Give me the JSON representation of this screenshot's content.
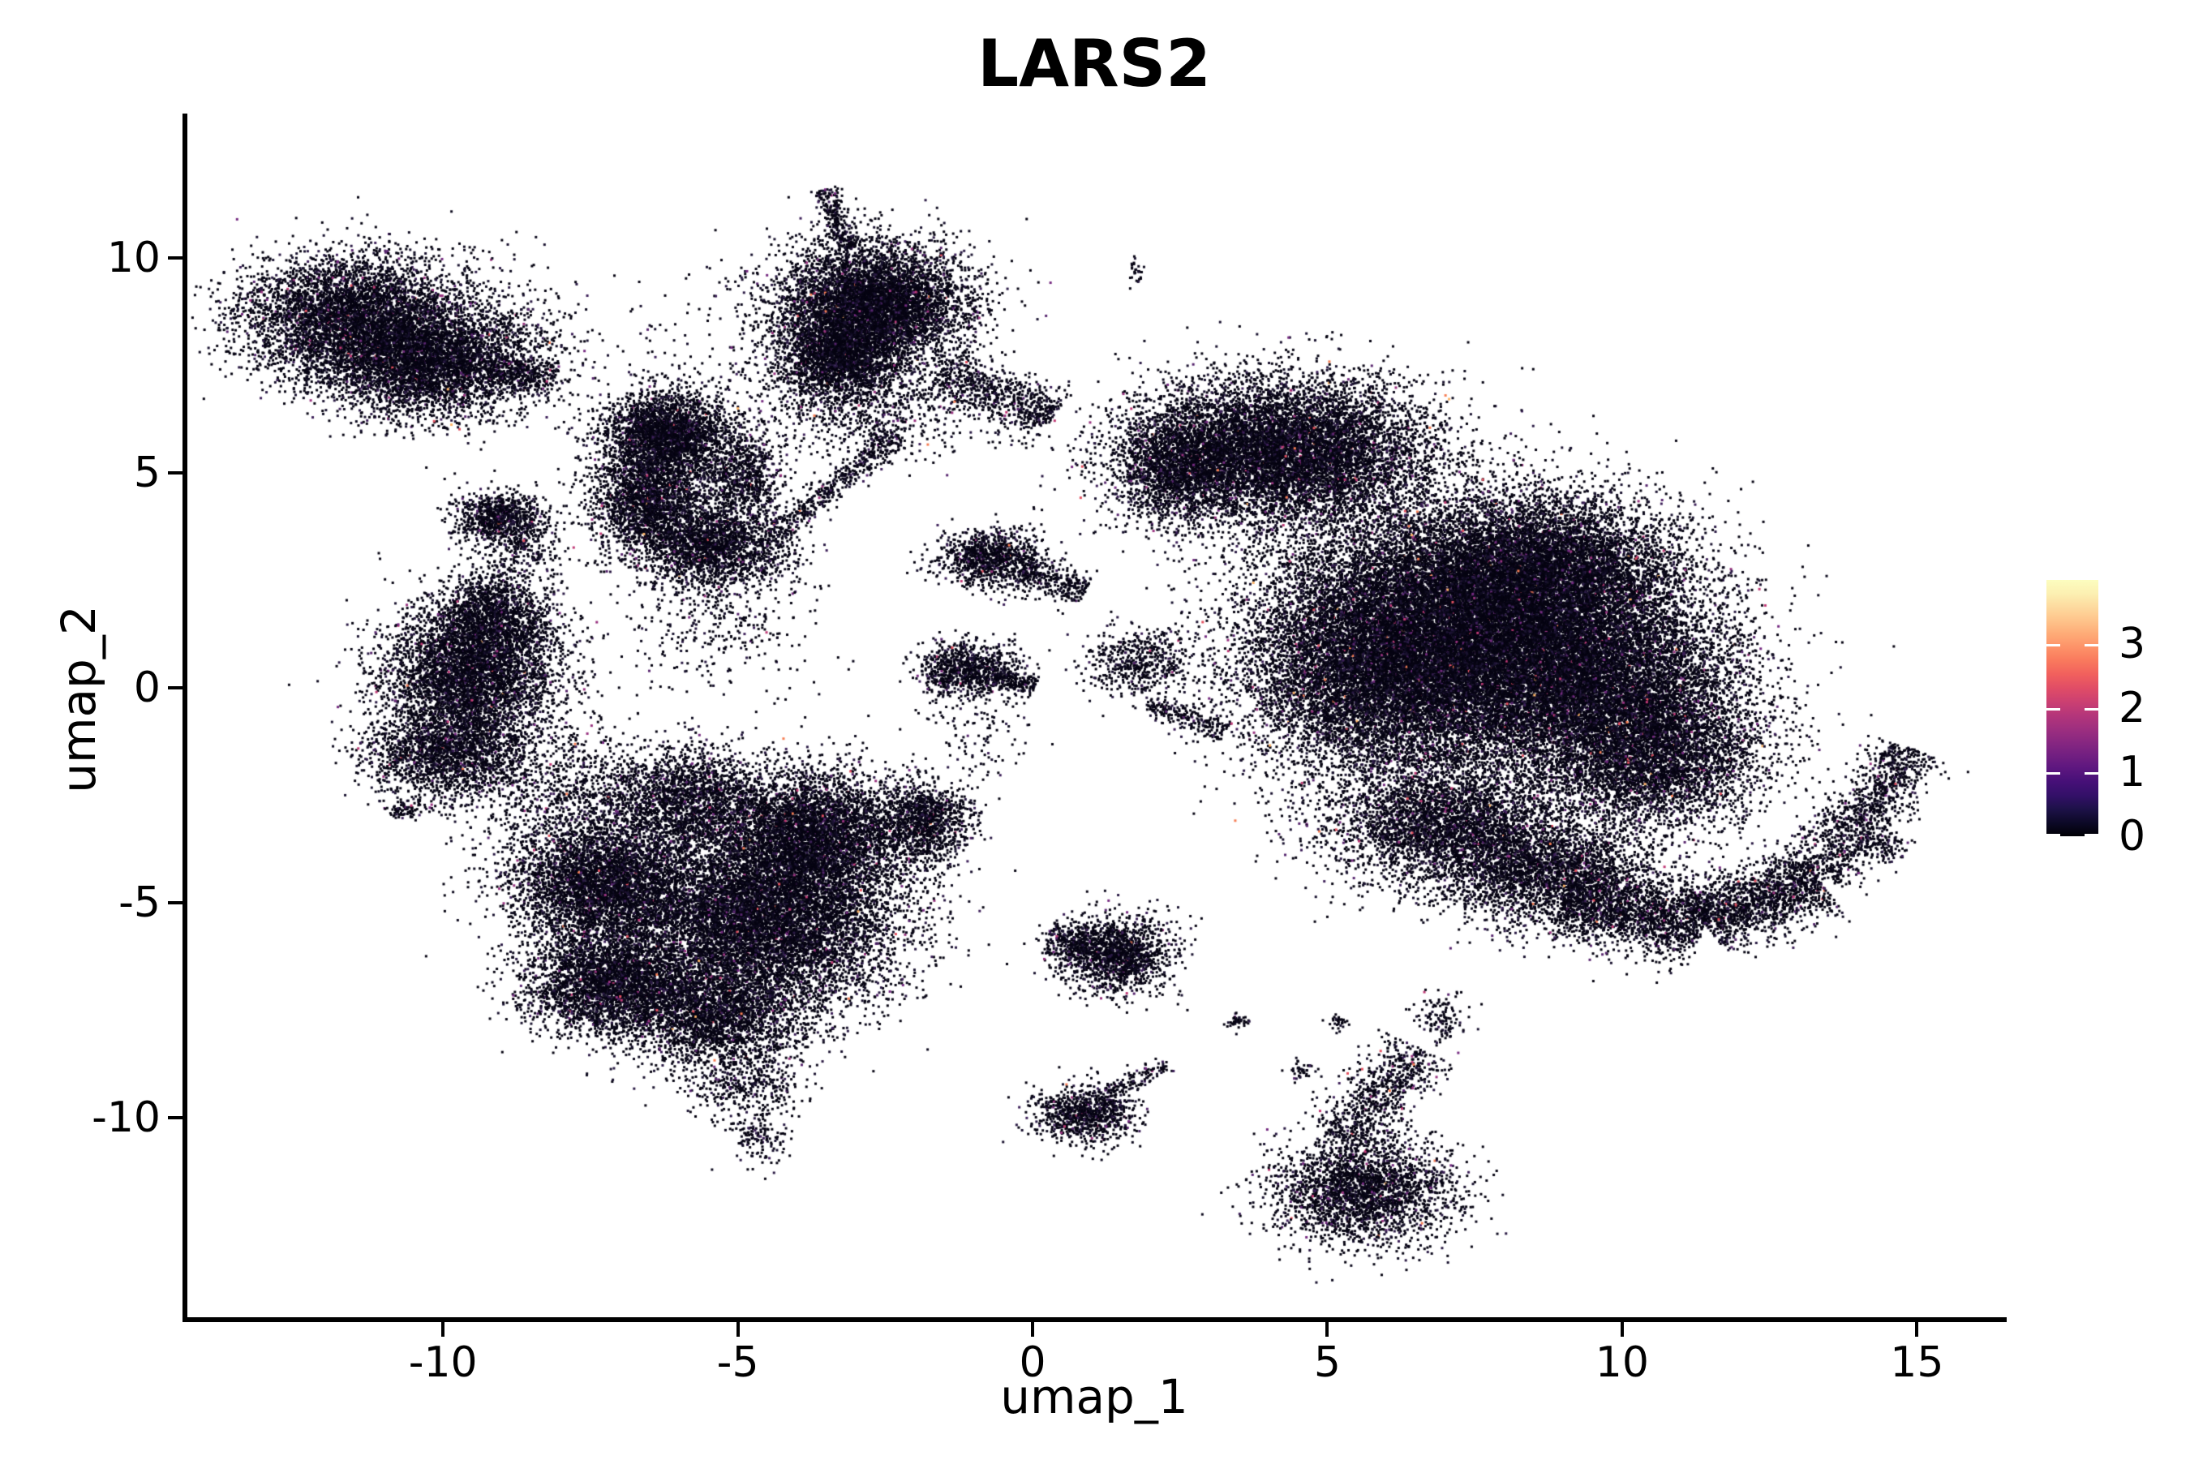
{
  "title": "LARS2",
  "axes": {
    "xlabel": "umap_1",
    "ylabel": "umap_2",
    "x_ticks": [
      -10,
      -5,
      0,
      5,
      10,
      15
    ],
    "y_ticks": [
      10,
      5,
      0,
      -5,
      -10
    ],
    "xlim": [
      -14.35,
      16.44
    ],
    "ylim": [
      -14.64,
      13.36
    ]
  },
  "colorbar": {
    "vmin": 0,
    "vmax": 4,
    "tick_values": [
      3,
      2,
      1,
      0
    ],
    "tick_labels": [
      "3",
      "2",
      "1",
      "0"
    ],
    "gradient_bottom_to_top": [
      "#000004",
      "#0c0927",
      "#1d1147",
      "#331068",
      "#451077",
      "#5c167f",
      "#721f81",
      "#882781",
      "#9f2f7f",
      "#b5367a",
      "#cc4071",
      "#e14d66",
      "#f1605d",
      "#f9795d",
      "#fd9268",
      "#feab77",
      "#fec48b",
      "#fdda9f",
      "#fcf0b2",
      "#fcfdbf"
    ]
  },
  "style": {
    "background": "#ffffff",
    "axis_color": "#000000",
    "text_color": "#000000"
  },
  "chart_data": {
    "type": "scatter",
    "title": "LARS2",
    "xlabel": "umap_1",
    "ylabel": "umap_2",
    "legend_position": "right",
    "grid": false,
    "seed": 42,
    "point_size": 3,
    "value_palette": [
      {
        "value": 0.0,
        "color": "#060412",
        "weight": 680
      },
      {
        "value": 0.1,
        "color": "#0d0a1e",
        "weight": 140
      },
      {
        "value": 0.3,
        "color": "#19122f",
        "weight": 90
      },
      {
        "value": 0.6,
        "color": "#2a1a44",
        "weight": 45
      },
      {
        "value": 0.9,
        "color": "#3d2059",
        "weight": 20
      },
      {
        "value": 1.3,
        "color": "#57256e",
        "weight": 10
      },
      {
        "value": 1.7,
        "color": "#752a80",
        "weight": 6
      },
      {
        "value": 2.1,
        "color": "#993380",
        "weight": 4
      },
      {
        "value": 2.5,
        "color": "#c03a76",
        "weight": 2.5
      },
      {
        "value": 2.9,
        "color": "#e35261",
        "weight": 1.5
      },
      {
        "value": 3.3,
        "color": "#f67e54",
        "weight": 0.8
      },
      {
        "value": 3.7,
        "color": "#fdb467",
        "weight": 0.4
      }
    ],
    "clusters": [
      {
        "name": "topleft-core",
        "kind": "blob",
        "x": -11.5,
        "y": 8.6,
        "sx": 0.95,
        "sy": 0.72,
        "n": 5200
      },
      {
        "name": "topleft-lower",
        "kind": "blob",
        "x": -10.3,
        "y": 7.5,
        "sx": 0.85,
        "sy": 0.62,
        "n": 3600
      },
      {
        "name": "topleft-fringe",
        "kind": "blob",
        "x": -9.4,
        "y": 7.9,
        "sx": 0.85,
        "sy": 0.85,
        "n": 800
      },
      {
        "name": "topleft-arm",
        "kind": "streak",
        "x1": -9.2,
        "y1": 7.4,
        "x2": -8.1,
        "y2": 7.2,
        "w": 0.22,
        "n": 350
      },
      {
        "name": "topcenter-core",
        "kind": "blob",
        "x": -2.7,
        "y": 8.9,
        "sx": 0.8,
        "sy": 0.72,
        "n": 6200
      },
      {
        "name": "topcenter-left",
        "kind": "blob",
        "x": -3.3,
        "y": 7.7,
        "sx": 0.55,
        "sy": 0.55,
        "n": 2400
      },
      {
        "name": "topcenter-spike",
        "kind": "streak",
        "x1": -3.1,
        "y1": 10.2,
        "x2": -3.55,
        "y2": 11.6,
        "w": 0.12,
        "n": 260
      },
      {
        "name": "topcenter-tail",
        "kind": "streak",
        "x1": -1.6,
        "y1": 7.3,
        "x2": 0.35,
        "y2": 6.3,
        "w": 0.3,
        "n": 750
      },
      {
        "name": "topcenter-below",
        "kind": "blob",
        "x": -2.7,
        "y": 6.4,
        "sx": 1.0,
        "sy": 0.55,
        "n": 600
      },
      {
        "name": "top-sparse",
        "kind": "blob",
        "x": -5.6,
        "y": 7.6,
        "sx": 1.1,
        "sy": 1.1,
        "n": 160
      },
      {
        "name": "small-left-blob",
        "kind": "blob",
        "x": -9.05,
        "y": 3.95,
        "sx": 0.4,
        "sy": 0.3,
        "n": 950
      },
      {
        "name": "small-left-trail",
        "kind": "blob",
        "x": -8.6,
        "y": 3.1,
        "sx": 0.35,
        "sy": 0.4,
        "n": 220
      },
      {
        "name": "left-vert-sparse",
        "kind": "streak",
        "x1": -8.6,
        "y1": 2.4,
        "x2": -8.5,
        "y2": 0.9,
        "w": 0.3,
        "n": 140
      },
      {
        "name": "leftmid-core",
        "kind": "blob",
        "x": -9.5,
        "y": 0.4,
        "sx": 0.72,
        "sy": 0.78,
        "n": 4600
      },
      {
        "name": "leftmid-top",
        "kind": "blob",
        "x": -9.2,
        "y": 1.75,
        "sx": 0.42,
        "sy": 0.5,
        "n": 1100
      },
      {
        "name": "leftmid-bottom",
        "kind": "blob",
        "x": -9.9,
        "y": -1.5,
        "sx": 0.72,
        "sy": 0.58,
        "n": 2300
      },
      {
        "name": "leftmid-speck",
        "kind": "blob",
        "x": -10.65,
        "y": -2.85,
        "sx": 0.12,
        "sy": 0.1,
        "n": 70
      },
      {
        "name": "center-hook-top",
        "kind": "blob",
        "x": -6.2,
        "y": 5.9,
        "sx": 0.55,
        "sy": 0.5,
        "n": 2700
      },
      {
        "name": "center-hook-left",
        "kind": "blob",
        "x": -6.5,
        "y": 4.4,
        "sx": 0.5,
        "sy": 0.65,
        "n": 2300
      },
      {
        "name": "center-hook-bottom",
        "kind": "blob",
        "x": -5.4,
        "y": 3.3,
        "sx": 0.6,
        "sy": 0.5,
        "n": 2100
      },
      {
        "name": "center-hook-right",
        "kind": "blob",
        "x": -4.9,
        "y": 4.9,
        "sx": 0.32,
        "sy": 0.55,
        "n": 800
      },
      {
        "name": "center-bridge",
        "kind": "streak",
        "x1": -4.5,
        "y1": 3.4,
        "x2": -2.3,
        "y2": 5.9,
        "w": 0.16,
        "n": 520
      },
      {
        "name": "center-below-sparse",
        "kind": "blob",
        "x": -5.4,
        "y": 1.7,
        "sx": 0.8,
        "sy": 0.9,
        "n": 420
      },
      {
        "name": "bottomleft-lobe1",
        "kind": "blob",
        "x": -7.3,
        "y": -4.6,
        "sx": 0.78,
        "sy": 0.78,
        "n": 4600
      },
      {
        "name": "bottomleft-lobe2",
        "kind": "blob",
        "x": -7.2,
        "y": -6.9,
        "sx": 0.68,
        "sy": 0.58,
        "n": 3100
      },
      {
        "name": "bottomcenter-main",
        "kind": "blob",
        "x": -4.6,
        "y": -5.4,
        "sx": 1.15,
        "sy": 1.05,
        "n": 9500
      },
      {
        "name": "bottomcenter-top",
        "kind": "blob",
        "x": -3.7,
        "y": -3.4,
        "sx": 0.8,
        "sy": 0.75,
        "n": 4600
      },
      {
        "name": "bottomcenter-low",
        "kind": "blob",
        "x": -5.4,
        "y": -7.6,
        "sx": 0.8,
        "sy": 0.6,
        "n": 2600
      },
      {
        "name": "bottomleft-top",
        "kind": "blob",
        "x": -5.9,
        "y": -2.6,
        "sx": 0.7,
        "sy": 0.6,
        "n": 2100
      },
      {
        "name": "bottomleft-sparse",
        "kind": "blob",
        "x": -7.9,
        "y": -2.3,
        "sx": 0.8,
        "sy": 0.75,
        "n": 700
      },
      {
        "name": "bottom-tail1",
        "kind": "blob",
        "x": -4.9,
        "y": -9.2,
        "sx": 0.5,
        "sy": 0.4,
        "n": 420
      },
      {
        "name": "bottom-tail2",
        "kind": "blob",
        "x": -4.6,
        "y": -10.4,
        "sx": 0.25,
        "sy": 0.35,
        "n": 150
      },
      {
        "name": "small-mid-bottom",
        "kind": "blob",
        "x": -1.8,
        "y": -3.1,
        "sx": 0.38,
        "sy": 0.45,
        "n": 1100
      },
      {
        "name": "central-blob1",
        "kind": "blob",
        "x": -0.7,
        "y": 3.0,
        "sx": 0.45,
        "sy": 0.33,
        "n": 1050
      },
      {
        "name": "central-blob1-trail",
        "kind": "streak",
        "x1": -0.2,
        "y1": 2.7,
        "x2": 0.9,
        "y2": 2.25,
        "w": 0.22,
        "n": 300
      },
      {
        "name": "central-blob2",
        "kind": "blob",
        "x": -1.1,
        "y": 0.4,
        "sx": 0.42,
        "sy": 0.33,
        "n": 950
      },
      {
        "name": "central-blob2-tip",
        "kind": "streak",
        "x1": -0.65,
        "y1": 0.3,
        "x2": 0.05,
        "y2": 0.05,
        "w": 0.13,
        "n": 180
      },
      {
        "name": "central-streak",
        "kind": "streak",
        "x1": 1.95,
        "y1": -0.35,
        "x2": 3.25,
        "y2": -1.05,
        "w": 0.16,
        "n": 230
      },
      {
        "name": "central-sparse",
        "kind": "blob",
        "x": -0.9,
        "y": -1.2,
        "sx": 0.5,
        "sy": 0.55,
        "n": 110
      },
      {
        "name": "right-hump",
        "kind": "blob",
        "x": 4.2,
        "y": 5.5,
        "sx": 1.25,
        "sy": 0.85,
        "n": 9500
      },
      {
        "name": "right-hump-tip",
        "kind": "blob",
        "x": 2.4,
        "y": 5.1,
        "sx": 0.5,
        "sy": 0.6,
        "n": 1500
      },
      {
        "name": "right-core1",
        "kind": "blob",
        "x": 7.4,
        "y": 1.2,
        "sx": 1.55,
        "sy": 1.5,
        "n": 16500
      },
      {
        "name": "right-core2",
        "kind": "blob",
        "x": 9.5,
        "y": 0.2,
        "sx": 1.25,
        "sy": 1.3,
        "n": 9500
      },
      {
        "name": "right-left-part",
        "kind": "blob",
        "x": 5.8,
        "y": 0.6,
        "sx": 1.15,
        "sy": 1.35,
        "n": 8000
      },
      {
        "name": "right-top",
        "kind": "blob",
        "x": 8.6,
        "y": 2.8,
        "sx": 1.15,
        "sy": 0.8,
        "n": 6000
      },
      {
        "name": "right-east",
        "kind": "blob",
        "x": 10.6,
        "y": -1.5,
        "sx": 0.9,
        "sy": 0.95,
        "n": 4200
      },
      {
        "name": "right-bottom1",
        "kind": "blob",
        "x": 7.0,
        "y": -3.2,
        "sx": 1.0,
        "sy": 0.7,
        "n": 3600
      },
      {
        "name": "right-bottom2",
        "kind": "blob",
        "x": 8.7,
        "y": -4.3,
        "sx": 0.85,
        "sy": 0.6,
        "n": 2600
      },
      {
        "name": "right-tail1",
        "kind": "streak",
        "x1": 9.0,
        "y1": -4.9,
        "x2": 11.4,
        "y2": -5.5,
        "w": 0.45,
        "n": 1900
      },
      {
        "name": "right-tail2",
        "kind": "streak",
        "x1": 11.4,
        "y1": -5.5,
        "x2": 13.3,
        "y2": -4.4,
        "w": 0.4,
        "n": 1500
      },
      {
        "name": "right-tail3",
        "kind": "streak",
        "x1": 13.3,
        "y1": -4.4,
        "x2": 14.9,
        "y2": -1.4,
        "w": 0.32,
        "n": 1200
      },
      {
        "name": "tail-satellite",
        "kind": "blob",
        "x": 14.4,
        "y": -3.7,
        "sx": 0.22,
        "sy": 0.18,
        "n": 110
      },
      {
        "name": "right-arm",
        "kind": "blob",
        "x": 1.8,
        "y": 0.6,
        "sx": 0.45,
        "sy": 0.4,
        "n": 550
      },
      {
        "name": "top-speck",
        "kind": "blob",
        "x": 1.75,
        "y": 9.7,
        "sx": 0.06,
        "sy": 0.14,
        "n": 30
      },
      {
        "name": "bottom-small1",
        "kind": "blob",
        "x": 1.4,
        "y": -6.2,
        "sx": 0.5,
        "sy": 0.42,
        "n": 1700
      },
      {
        "name": "bottom-small1-tail",
        "kind": "streak",
        "x1": 0.25,
        "y1": -5.8,
        "x2": 1.0,
        "y2": -6.0,
        "w": 0.18,
        "n": 160
      },
      {
        "name": "bottom-small2",
        "kind": "blob",
        "x": 0.9,
        "y": -9.9,
        "sx": 0.42,
        "sy": 0.33,
        "n": 950
      },
      {
        "name": "bottom-small2-tail",
        "kind": "streak",
        "x1": 1.3,
        "y1": -9.4,
        "x2": 2.3,
        "y2": -8.75,
        "w": 0.1,
        "n": 110
      },
      {
        "name": "cone-blob",
        "kind": "blob",
        "x": 5.6,
        "y": -11.7,
        "sx": 0.75,
        "sy": 0.62,
        "n": 2700
      },
      {
        "name": "cone-neck",
        "kind": "streak",
        "x1": 5.2,
        "y1": -10.5,
        "x2": 6.6,
        "y2": -8.4,
        "w": 0.34,
        "n": 750
      },
      {
        "name": "cone-tip",
        "kind": "blob",
        "x": 6.9,
        "y": -7.7,
        "sx": 0.2,
        "sy": 0.25,
        "n": 130
      },
      {
        "name": "speck-a",
        "kind": "blob",
        "x": 3.5,
        "y": -7.75,
        "sx": 0.12,
        "sy": 0.1,
        "n": 40
      },
      {
        "name": "speck-b",
        "kind": "blob",
        "x": 5.2,
        "y": -7.8,
        "sx": 0.1,
        "sy": 0.08,
        "n": 30
      },
      {
        "name": "speck-c",
        "kind": "blob",
        "x": 4.6,
        "y": -8.9,
        "sx": 0.14,
        "sy": 0.12,
        "n": 45
      }
    ]
  }
}
